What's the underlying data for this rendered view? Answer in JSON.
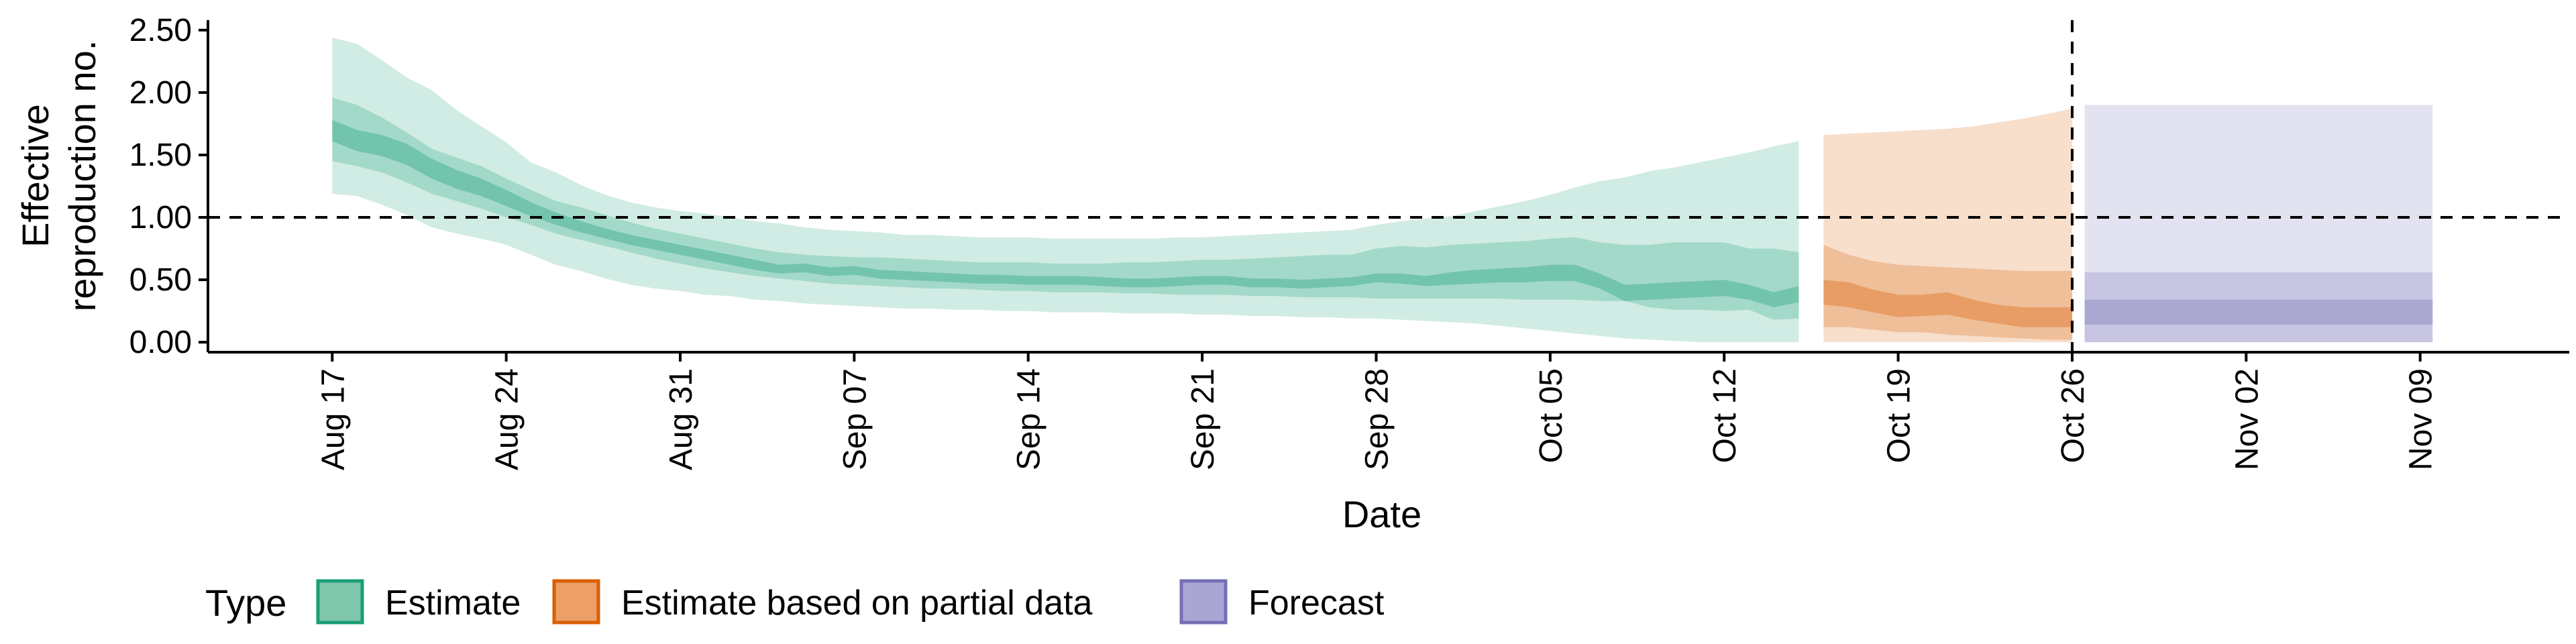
{
  "chart_data": {
    "type": "area",
    "xlabel": "Date",
    "ylabel_lines": [
      "Effective",
      "reproduction no."
    ],
    "ylim": [
      -0.08,
      2.58
    ],
    "xlim": [
      "2020-08-12",
      "2020-11-15"
    ],
    "y_ticks": [
      {
        "value": 0.0,
        "label": "0.00"
      },
      {
        "value": 0.5,
        "label": "0.50"
      },
      {
        "value": 1.0,
        "label": "1.00"
      },
      {
        "value": 1.5,
        "label": "1.50"
      },
      {
        "value": 2.0,
        "label": "2.00"
      },
      {
        "value": 2.5,
        "label": "2.50"
      }
    ],
    "x_ticks": [
      {
        "date": "2020-08-17",
        "label": "Aug 17"
      },
      {
        "date": "2020-08-24",
        "label": "Aug 24"
      },
      {
        "date": "2020-08-31",
        "label": "Aug 31"
      },
      {
        "date": "2020-09-07",
        "label": "Sep 07"
      },
      {
        "date": "2020-09-14",
        "label": "Sep 14"
      },
      {
        "date": "2020-09-21",
        "label": "Sep 21"
      },
      {
        "date": "2020-09-28",
        "label": "Sep 28"
      },
      {
        "date": "2020-10-05",
        "label": "Oct 05"
      },
      {
        "date": "2020-10-12",
        "label": "Oct 12"
      },
      {
        "date": "2020-10-19",
        "label": "Oct 19"
      },
      {
        "date": "2020-10-26",
        "label": "Oct 26"
      },
      {
        "date": "2020-11-02",
        "label": "Nov 02"
      },
      {
        "date": "2020-11-09",
        "label": "Nov 09"
      }
    ],
    "reference_lines": {
      "horizontal_y": 1.0,
      "vertical_date": "2020-10-26"
    },
    "legend": {
      "title": "Type",
      "placement": "bottom",
      "entries": [
        {
          "name": "Estimate",
          "fill": "#7fc6ad",
          "border": "#1b9e77"
        },
        {
          "name": "Estimate based on partial data",
          "fill": "#ec9f66",
          "border": "#d95f02"
        },
        {
          "name": "Forecast",
          "fill": "#aaa6d4",
          "border": "#7570b3"
        }
      ]
    },
    "series": [
      {
        "name": "Estimate",
        "color": "#1b9e77",
        "x": [
          "2020-08-17",
          "2020-08-18",
          "2020-08-19",
          "2020-08-20",
          "2020-08-21",
          "2020-08-22",
          "2020-08-23",
          "2020-08-24",
          "2020-08-25",
          "2020-08-26",
          "2020-08-27",
          "2020-08-28",
          "2020-08-29",
          "2020-08-30",
          "2020-08-31",
          "2020-09-01",
          "2020-09-02",
          "2020-09-03",
          "2020-09-04",
          "2020-09-05",
          "2020-09-06",
          "2020-09-07",
          "2020-09-08",
          "2020-09-09",
          "2020-09-10",
          "2020-09-11",
          "2020-09-12",
          "2020-09-13",
          "2020-09-14",
          "2020-09-15",
          "2020-09-16",
          "2020-09-17",
          "2020-09-18",
          "2020-09-19",
          "2020-09-20",
          "2020-09-21",
          "2020-09-22",
          "2020-09-23",
          "2020-09-24",
          "2020-09-25",
          "2020-09-26",
          "2020-09-27",
          "2020-09-28",
          "2020-09-29",
          "2020-09-30",
          "2020-10-01",
          "2020-10-02",
          "2020-10-03",
          "2020-10-04",
          "2020-10-05",
          "2020-10-06",
          "2020-10-07",
          "2020-10-08",
          "2020-10-09",
          "2020-10-10",
          "2020-10-11",
          "2020-10-12",
          "2020-10-13",
          "2020-10-14",
          "2020-10-15"
        ],
        "lower_90": [
          1.19,
          1.17,
          1.1,
          1.02,
          0.92,
          0.87,
          0.83,
          0.78,
          0.7,
          0.62,
          0.57,
          0.51,
          0.46,
          0.43,
          0.41,
          0.38,
          0.37,
          0.34,
          0.33,
          0.31,
          0.3,
          0.29,
          0.28,
          0.27,
          0.27,
          0.26,
          0.26,
          0.25,
          0.25,
          0.24,
          0.24,
          0.24,
          0.23,
          0.23,
          0.23,
          0.22,
          0.22,
          0.21,
          0.21,
          0.2,
          0.2,
          0.19,
          0.19,
          0.18,
          0.17,
          0.16,
          0.15,
          0.13,
          0.11,
          0.09,
          0.07,
          0.05,
          0.03,
          0.02,
          0.01,
          0.0,
          0.0,
          0.0,
          0.0,
          0.0
        ],
        "upper_90": [
          2.44,
          2.39,
          2.26,
          2.12,
          2.02,
          1.86,
          1.73,
          1.6,
          1.44,
          1.36,
          1.26,
          1.18,
          1.12,
          1.08,
          1.05,
          1.03,
          1.0,
          0.97,
          0.95,
          0.92,
          0.9,
          0.89,
          0.88,
          0.86,
          0.86,
          0.85,
          0.84,
          0.84,
          0.84,
          0.83,
          0.83,
          0.83,
          0.83,
          0.83,
          0.84,
          0.84,
          0.85,
          0.86,
          0.87,
          0.88,
          0.89,
          0.9,
          0.94,
          0.97,
          0.99,
          1.01,
          1.05,
          1.09,
          1.13,
          1.18,
          1.24,
          1.29,
          1.32,
          1.37,
          1.4,
          1.44,
          1.48,
          1.52,
          1.57,
          1.61
        ],
        "lower_50": [
          1.45,
          1.41,
          1.36,
          1.28,
          1.19,
          1.13,
          1.07,
          1.0,
          0.94,
          0.87,
          0.82,
          0.77,
          0.72,
          0.67,
          0.63,
          0.59,
          0.56,
          0.53,
          0.51,
          0.49,
          0.47,
          0.46,
          0.45,
          0.44,
          0.43,
          0.43,
          0.42,
          0.41,
          0.41,
          0.4,
          0.4,
          0.4,
          0.39,
          0.39,
          0.38,
          0.38,
          0.38,
          0.37,
          0.37,
          0.36,
          0.36,
          0.36,
          0.35,
          0.35,
          0.35,
          0.35,
          0.35,
          0.35,
          0.34,
          0.34,
          0.34,
          0.33,
          0.33,
          0.28,
          0.26,
          0.26,
          0.25,
          0.26,
          0.18,
          0.19
        ],
        "upper_50": [
          1.96,
          1.9,
          1.8,
          1.68,
          1.55,
          1.48,
          1.41,
          1.31,
          1.22,
          1.13,
          1.08,
          1.02,
          0.96,
          0.91,
          0.87,
          0.83,
          0.79,
          0.75,
          0.72,
          0.7,
          0.69,
          0.68,
          0.68,
          0.67,
          0.66,
          0.65,
          0.64,
          0.64,
          0.64,
          0.63,
          0.63,
          0.63,
          0.64,
          0.64,
          0.65,
          0.66,
          0.66,
          0.67,
          0.68,
          0.69,
          0.7,
          0.7,
          0.75,
          0.77,
          0.76,
          0.78,
          0.79,
          0.8,
          0.81,
          0.83,
          0.84,
          0.8,
          0.78,
          0.78,
          0.8,
          0.8,
          0.8,
          0.75,
          0.75,
          0.72
        ],
        "lower_20": [
          1.61,
          1.53,
          1.49,
          1.42,
          1.31,
          1.23,
          1.17,
          1.09,
          1.01,
          0.94,
          0.88,
          0.83,
          0.78,
          0.74,
          0.7,
          0.66,
          0.62,
          0.58,
          0.55,
          0.56,
          0.53,
          0.54,
          0.51,
          0.5,
          0.49,
          0.48,
          0.47,
          0.47,
          0.46,
          0.46,
          0.46,
          0.45,
          0.44,
          0.44,
          0.45,
          0.46,
          0.46,
          0.44,
          0.44,
          0.43,
          0.44,
          0.45,
          0.48,
          0.47,
          0.45,
          0.46,
          0.47,
          0.48,
          0.48,
          0.49,
          0.49,
          0.43,
          0.33,
          0.34,
          0.35,
          0.36,
          0.37,
          0.34,
          0.28,
          0.32
        ],
        "upper_20": [
          1.78,
          1.7,
          1.66,
          1.59,
          1.47,
          1.38,
          1.31,
          1.22,
          1.12,
          1.04,
          0.97,
          0.91,
          0.86,
          0.82,
          0.78,
          0.74,
          0.7,
          0.66,
          0.62,
          0.63,
          0.6,
          0.61,
          0.58,
          0.57,
          0.56,
          0.55,
          0.54,
          0.54,
          0.53,
          0.53,
          0.53,
          0.52,
          0.51,
          0.51,
          0.52,
          0.53,
          0.53,
          0.51,
          0.51,
          0.5,
          0.51,
          0.52,
          0.55,
          0.55,
          0.53,
          0.56,
          0.58,
          0.59,
          0.6,
          0.62,
          0.62,
          0.55,
          0.46,
          0.47,
          0.48,
          0.49,
          0.5,
          0.46,
          0.4,
          0.45
        ]
      },
      {
        "name": "Estimate based on partial data",
        "color": "#d95f02",
        "x": [
          "2020-10-16",
          "2020-10-17",
          "2020-10-18",
          "2020-10-19",
          "2020-10-20",
          "2020-10-21",
          "2020-10-22",
          "2020-10-23",
          "2020-10-24",
          "2020-10-25",
          "2020-10-26"
        ],
        "lower_90": [
          0.0,
          0.0,
          0.0,
          0.0,
          0.0,
          0.0,
          0.0,
          0.0,
          0.0,
          0.0,
          0.0
        ],
        "upper_90": [
          1.66,
          1.67,
          1.68,
          1.69,
          1.7,
          1.71,
          1.73,
          1.76,
          1.79,
          1.83,
          1.87
        ],
        "lower_50": [
          0.12,
          0.12,
          0.1,
          0.08,
          0.08,
          0.06,
          0.05,
          0.04,
          0.03,
          0.02,
          0.02
        ],
        "upper_50": [
          0.78,
          0.7,
          0.65,
          0.62,
          0.61,
          0.6,
          0.59,
          0.58,
          0.57,
          0.57,
          0.57
        ],
        "lower_20": [
          0.3,
          0.28,
          0.24,
          0.2,
          0.21,
          0.22,
          0.18,
          0.15,
          0.12,
          0.12,
          0.12
        ],
        "upper_20": [
          0.5,
          0.48,
          0.42,
          0.38,
          0.38,
          0.4,
          0.34,
          0.3,
          0.28,
          0.28,
          0.28
        ]
      },
      {
        "name": "Forecast",
        "color": "#7570b3",
        "x": [
          "2020-10-27",
          "2020-11-09"
        ],
        "lower_90": [
          0.0,
          0.0
        ],
        "upper_90": [
          1.9,
          1.9
        ],
        "lower_50": [
          0.0,
          0.0
        ],
        "upper_50": [
          0.56,
          0.56
        ],
        "lower_20": [
          0.14,
          0.14
        ],
        "upper_20": [
          0.34,
          0.34
        ]
      }
    ]
  }
}
